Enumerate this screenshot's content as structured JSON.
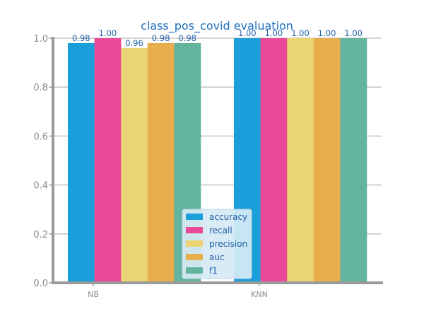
{
  "chart_data": {
    "type": "bar",
    "title": "class_pos_covid evaluation",
    "xlabel": "",
    "ylabel": "",
    "categories": [
      "NB",
      "KNN"
    ],
    "series": [
      {
        "name": "accuracy",
        "values": [
          0.98,
          1.0
        ],
        "labels": [
          "0.98",
          "1.00"
        ],
        "color": "#1a9fda"
      },
      {
        "name": "recall",
        "values": [
          1.0,
          1.0
        ],
        "labels": [
          "1.00",
          "1.00"
        ],
        "color": "#ea4898"
      },
      {
        "name": "precision",
        "values": [
          0.96,
          1.0
        ],
        "labels": [
          "0.96",
          "1.00"
        ],
        "color": "#ebd474"
      },
      {
        "name": "auc",
        "values": [
          0.98,
          1.0
        ],
        "labels": [
          "0.98",
          "1.00"
        ],
        "color": "#e8ae4e"
      },
      {
        "name": "f1",
        "values": [
          0.98,
          1.0
        ],
        "labels": [
          "0.98",
          "1.00"
        ],
        "color": "#62b49e"
      }
    ],
    "ylim": [
      0,
      1.0
    ],
    "yticks": [
      "0.0",
      "0.2",
      "0.4",
      "0.6",
      "0.8",
      "1.0"
    ],
    "grid": true,
    "legend_position": "bottom-center",
    "colors": {
      "title": "#1f6fbf",
      "data_label": "#1f5fa8",
      "tick_label": "#8a8a8a",
      "axis": "#9a9a9a",
      "grid": "#c8c8c8",
      "legend_text": "#1f5fa8",
      "legend_bg": "#d6eaf5",
      "legend_border": "#c0d4e0"
    }
  }
}
